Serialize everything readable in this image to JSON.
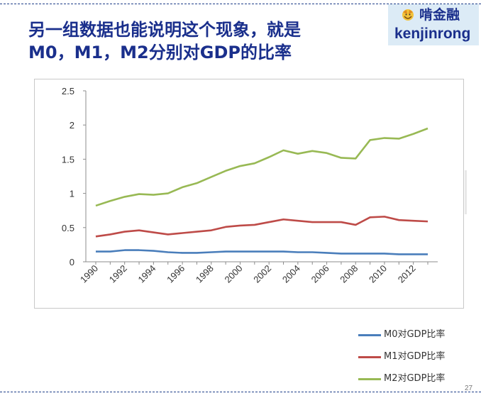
{
  "slide": {
    "title_line1": "另一组数据也能说明这个现象，就是",
    "title_line2": "M0，M1，M2分别对GDP的比率",
    "page_number": "27"
  },
  "brand": {
    "name_cn": "啃金融",
    "name_en": "kenjinrong",
    "icon": "fox-logo-icon",
    "background": "#dcebf6",
    "text_color": "#1a2f8c"
  },
  "chart_data": {
    "type": "line",
    "title": "",
    "xlabel": "",
    "ylabel": "",
    "x": [
      1990,
      1991,
      1992,
      1993,
      1994,
      1995,
      1996,
      1997,
      1998,
      1999,
      2000,
      2001,
      2002,
      2003,
      2004,
      2005,
      2006,
      2007,
      2008,
      2009,
      2010,
      2011,
      2012,
      2013
    ],
    "x_tick_labels": [
      "1990",
      "1992",
      "1994",
      "1996",
      "1998",
      "2000",
      "2002",
      "2004",
      "2006",
      "2008",
      "2010",
      "2012"
    ],
    "y_tick_labels": [
      "0",
      "0.5",
      "1",
      "1.5",
      "2",
      "2.5"
    ],
    "ylim": [
      0,
      2.5
    ],
    "grid": false,
    "legend_position": "bottom-right",
    "series": [
      {
        "name": "M0对GDP比率",
        "color": "#4a7ebb",
        "values": [
          0.15,
          0.15,
          0.17,
          0.17,
          0.16,
          0.14,
          0.13,
          0.13,
          0.14,
          0.15,
          0.15,
          0.15,
          0.15,
          0.15,
          0.14,
          0.14,
          0.13,
          0.12,
          0.12,
          0.12,
          0.12,
          0.11,
          0.11,
          0.11
        ]
      },
      {
        "name": "M1对GDP比率",
        "color": "#be4b48",
        "values": [
          0.37,
          0.4,
          0.44,
          0.46,
          0.43,
          0.4,
          0.42,
          0.44,
          0.46,
          0.51,
          0.53,
          0.54,
          0.58,
          0.62,
          0.6,
          0.58,
          0.58,
          0.58,
          0.54,
          0.65,
          0.66,
          0.61,
          0.6,
          0.59
        ]
      },
      {
        "name": "M2对GDP比率",
        "color": "#98b954",
        "values": [
          0.82,
          0.89,
          0.95,
          0.99,
          0.98,
          1.0,
          1.09,
          1.15,
          1.24,
          1.33,
          1.4,
          1.44,
          1.53,
          1.63,
          1.58,
          1.62,
          1.59,
          1.52,
          1.51,
          1.78,
          1.81,
          1.8,
          1.87,
          1.95
        ]
      }
    ]
  }
}
